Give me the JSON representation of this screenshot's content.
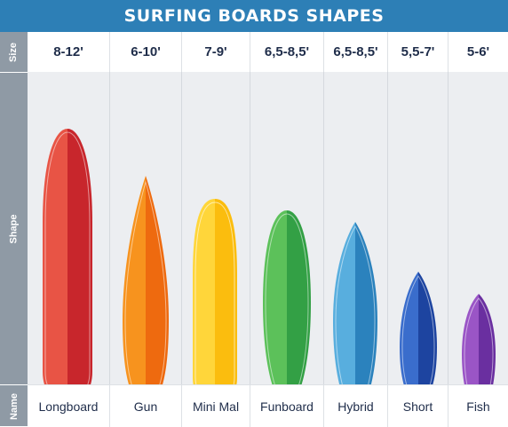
{
  "header": {
    "title": "SURFING BOARDS SHAPES"
  },
  "row_labels": {
    "size": "Size",
    "shape": "Shape",
    "name": "Name"
  },
  "boards": [
    {
      "size": "8-12'",
      "name": "Longboard",
      "color_light": "#e85445",
      "color_dark": "#c8262c"
    },
    {
      "size": "6-10'",
      "name": "Gun",
      "color_light": "#f7931e",
      "color_dark": "#ee6a0f"
    },
    {
      "size": "7-9'",
      "name": "Mini Mal",
      "color_light": "#ffd63a",
      "color_dark": "#fbbd0e"
    },
    {
      "size": "6,5-8,5'",
      "name": "Funboard",
      "color_light": "#5cc15a",
      "color_dark": "#33a045"
    },
    {
      "size": "6,5-8,5'",
      "name": "Hybrid",
      "color_light": "#58aede",
      "color_dark": "#2b82bd"
    },
    {
      "size": "5,5-7'",
      "name": "Short",
      "color_light": "#3a6dcc",
      "color_dark": "#1d44a0"
    },
    {
      "size": "5-6'",
      "name": "Fish",
      "color_light": "#9a55c6",
      "color_dark": "#6a2fa0"
    }
  ]
}
